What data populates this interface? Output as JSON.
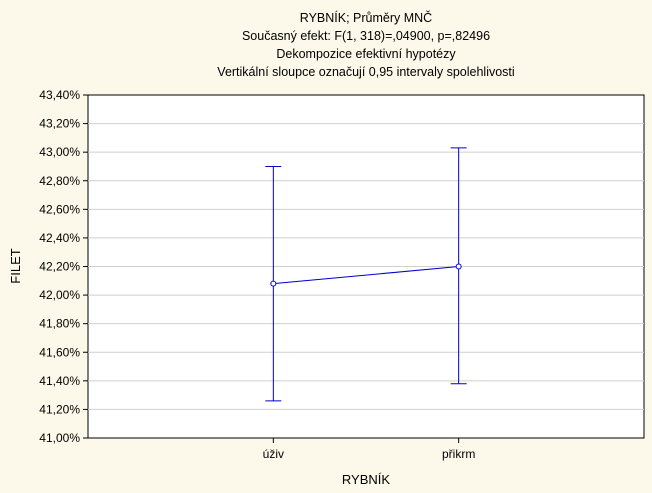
{
  "chart_data": {
    "type": "line",
    "title_lines": [
      "RYBNÍK; Průměry MNČ",
      "Současný efekt: F(1, 318)=,04900, p=,82496",
      "Dekompozice efektivní hypotézy",
      "Vertikální sloupce označují 0,95 intervaly spolehlivosti"
    ],
    "xlabel": "RYBNÍK",
    "ylabel": "FILET",
    "categories": [
      "úživ",
      "přikrm"
    ],
    "series": [
      {
        "values": [
          42.08,
          42.2
        ],
        "ci_lower": [
          41.26,
          41.38
        ],
        "ci_upper": [
          42.9,
          43.03
        ]
      }
    ],
    "ylim": [
      41.0,
      43.4
    ],
    "yticks": [
      41.0,
      41.2,
      41.4,
      41.6,
      41.8,
      42.0,
      42.2,
      42.4,
      42.6,
      42.8,
      43.0,
      43.2,
      43.4
    ],
    "ytick_labels": [
      "41,00%",
      "41,20%",
      "41,40%",
      "41,60%",
      "41,80%",
      "42,00%",
      "42,20%",
      "42,40%",
      "42,60%",
      "42,80%",
      "43,00%",
      "43,20%",
      "43,40%"
    ],
    "grid": true,
    "colors": {
      "series": "#0000cc",
      "grid": "#cfcfcf",
      "background": "#fdf9ea",
      "plot": "#ffffff"
    }
  }
}
